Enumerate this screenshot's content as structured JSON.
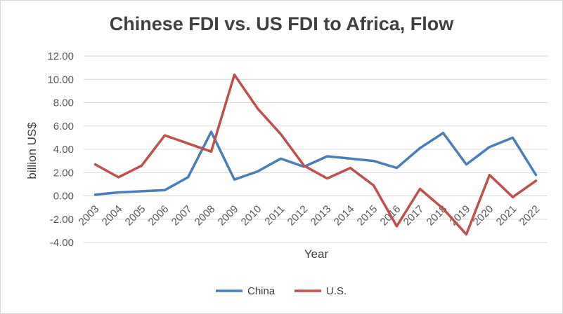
{
  "chart_data": {
    "type": "line",
    "title": "Chinese FDI vs. US FDI to Africa, Flow",
    "xlabel": "Year",
    "ylabel": "billion US$",
    "categories": [
      "2003",
      "2004",
      "2005",
      "2006",
      "2007",
      "2008",
      "2009",
      "2010",
      "2011",
      "2012",
      "2013",
      "2014",
      "2015",
      "2016",
      "2017",
      "2018",
      "2019",
      "2020",
      "2021",
      "2022"
    ],
    "yticks": [
      "12.00",
      "10.00",
      "8.00",
      "6.00",
      "4.00",
      "2.00",
      "0.00",
      "-2.00",
      "-4.00"
    ],
    "ylim": [
      -4,
      12
    ],
    "grid": true,
    "legend_position": "bottom",
    "series": [
      {
        "name": "China",
        "color": "#4a7ebb",
        "values": [
          0.1,
          0.3,
          0.4,
          0.5,
          1.6,
          5.5,
          1.4,
          2.1,
          3.2,
          2.5,
          3.4,
          3.2,
          3.0,
          2.4,
          4.1,
          5.4,
          2.7,
          4.2,
          5.0,
          1.8
        ]
      },
      {
        "name": "U.S.",
        "color": "#c0504d",
        "values": [
          2.7,
          1.6,
          2.6,
          5.2,
          4.5,
          3.8,
          10.4,
          7.5,
          5.3,
          2.6,
          1.5,
          2.4,
          0.9,
          -2.6,
          0.6,
          -1.1,
          -3.3,
          1.8,
          -0.1,
          1.3
        ]
      }
    ]
  }
}
